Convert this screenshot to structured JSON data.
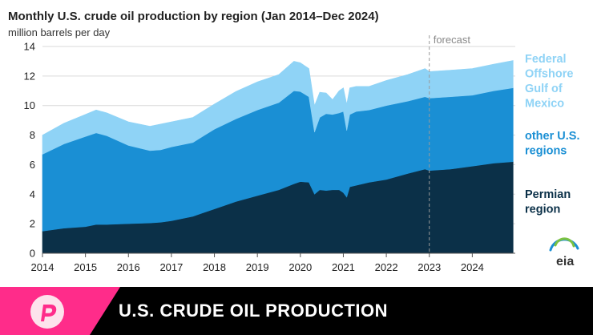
{
  "chart_data": {
    "type": "area",
    "stacked": true,
    "title": "Monthly U.S. crude oil production by region (Jan 2014–Dec 2024)",
    "subtitle": "million barrels per day",
    "ylim": [
      0,
      14
    ],
    "yticks": [
      0,
      2,
      4,
      6,
      8,
      10,
      12,
      14
    ],
    "xlim": [
      2014,
      2025
    ],
    "xticks": [
      "2014",
      "2015",
      "2016",
      "2017",
      "2018",
      "2019",
      "2020",
      "2021",
      "2022",
      "2023",
      "2024"
    ],
    "forecast_start": 2023,
    "forecast_label": "forecast",
    "x": [
      2014.0,
      2014.5,
      2015.0,
      2015.25,
      2015.5,
      2016.0,
      2016.5,
      2016.75,
      2017.0,
      2017.5,
      2018.0,
      2018.5,
      2019.0,
      2019.5,
      2019.85,
      2020.0,
      2020.2,
      2020.33,
      2020.45,
      2020.6,
      2020.75,
      2020.9,
      2021.0,
      2021.08,
      2021.15,
      2021.3,
      2021.6,
      2022.0,
      2022.5,
      2022.9,
      2023.0,
      2023.5,
      2024.0,
      2024.5,
      2024.95
    ],
    "series": [
      {
        "name": "Permian region",
        "color": "#0b3048",
        "values": [
          1.5,
          1.7,
          1.8,
          1.95,
          1.95,
          2.0,
          2.05,
          2.1,
          2.2,
          2.5,
          3.0,
          3.5,
          3.9,
          4.3,
          4.7,
          4.85,
          4.8,
          4.0,
          4.3,
          4.25,
          4.3,
          4.3,
          4.1,
          3.8,
          4.5,
          4.6,
          4.8,
          5.0,
          5.4,
          5.7,
          5.6,
          5.7,
          5.9,
          6.1,
          6.2
        ]
      },
      {
        "name": "other U.S. regions",
        "color": "#1a8fd4",
        "values": [
          5.2,
          5.7,
          6.1,
          6.2,
          6.0,
          5.3,
          4.9,
          4.9,
          5.0,
          5.0,
          5.4,
          5.6,
          5.8,
          5.9,
          6.3,
          6.1,
          5.8,
          4.2,
          4.9,
          5.2,
          5.1,
          5.2,
          5.5,
          4.5,
          4.9,
          5.0,
          4.9,
          5.0,
          4.9,
          4.9,
          4.9,
          4.9,
          4.8,
          4.9,
          5.0
        ]
      },
      {
        "name": "Federal Offshore Gulf of Mexico",
        "color": "#8fd3f6",
        "values": [
          1.3,
          1.4,
          1.5,
          1.55,
          1.55,
          1.6,
          1.65,
          1.75,
          1.7,
          1.7,
          1.7,
          1.85,
          1.9,
          1.9,
          2.0,
          1.95,
          1.9,
          1.8,
          1.7,
          1.4,
          1.0,
          1.5,
          1.6,
          1.8,
          1.8,
          1.7,
          1.6,
          1.7,
          1.8,
          1.9,
          1.8,
          1.8,
          1.8,
          1.8,
          1.85
        ]
      }
    ],
    "legend": [
      {
        "lines": [
          "Federal",
          "Offshore",
          "Gulf of",
          "Mexico"
        ],
        "color": "#8fd3f6"
      },
      {
        "lines": [
          "other U.S.",
          "regions"
        ],
        "color": "#1a8fd4"
      },
      {
        "lines": [
          "Permian",
          "region"
        ],
        "color": "#0b3048"
      }
    ],
    "legend_position": "right"
  },
  "source_logo": "eia",
  "banner": {
    "headline": "U.S. CRUDE OIL PRODUCTION",
    "brand_color": "#ff2c8a",
    "logo_icon": "brand-p-icon"
  }
}
